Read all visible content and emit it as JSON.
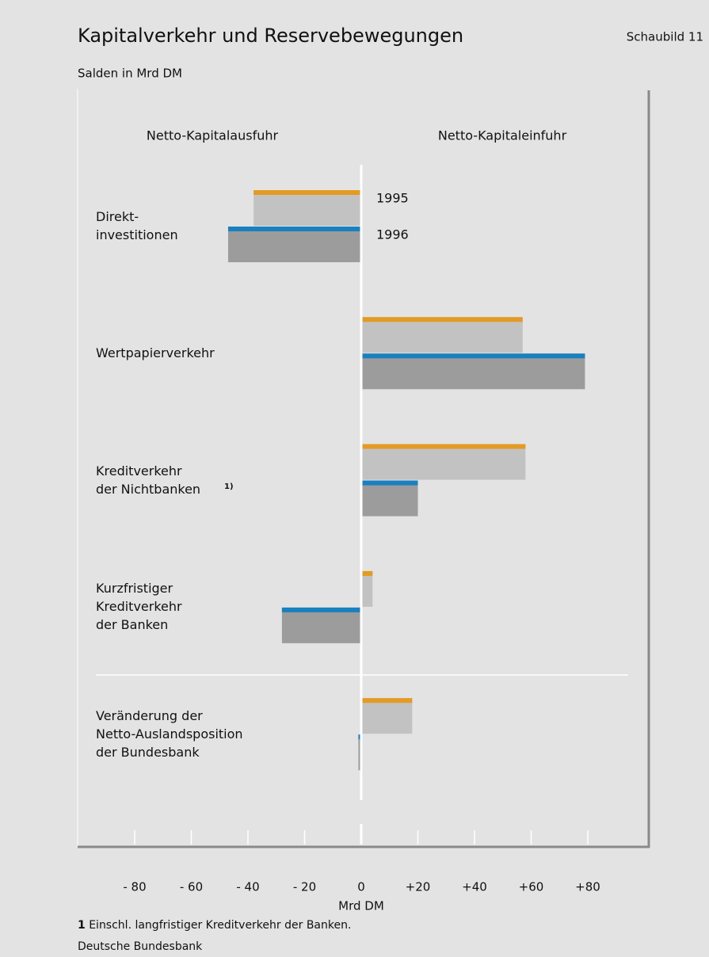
{
  "chart_data": {
    "type": "bar",
    "orientation": "horizontal",
    "title": "Kapitalverkehr und Reservebewegungen",
    "figure_label": "Schaubild 11",
    "subtitle": "Salden in Mrd DM",
    "left_heading": "Netto-Kapitalausfuhr",
    "right_heading": "Netto-Kapitaleinfuhr",
    "xlabel": "Mrd DM",
    "categories": [
      "Direkt-\ninvestitionen",
      "Wertpapierverkehr",
      "Kreditverkehr\nder Nichtbanken",
      "Kurzfristiger\nKreditverkehr\nder Banken",
      "Veränderung der\nNetto-Auslandsposition\nder Bundesbank"
    ],
    "series": [
      {
        "name": "1995",
        "color": "#e39b23",
        "fill": "#c2c2c2",
        "values": [
          -38,
          57,
          58,
          4,
          18
        ]
      },
      {
        "name": "1996",
        "color": "#1a80c0",
        "fill": "#9c9c9c",
        "values": [
          -47,
          79,
          20,
          -28,
          -1
        ]
      }
    ],
    "xlim": [
      -100,
      100
    ],
    "xticks": [
      {
        "value": -80,
        "label": "- 80"
      },
      {
        "value": -60,
        "label": "- 60"
      },
      {
        "value": -40,
        "label": "- 40"
      },
      {
        "value": -20,
        "label": "- 20"
      },
      0,
      {
        "value": 20,
        "label": "+20"
      },
      {
        "value": 40,
        "label": "+40"
      },
      {
        "value": 60,
        "label": "+60"
      },
      {
        "value": 80,
        "label": "+80"
      }
    ],
    "footnote": {
      "ref": "1)",
      "marker": "1",
      "text": "Einschl. langfristiger Kreditverkehr der Banken."
    },
    "source": "Deutsche Bundesbank"
  }
}
